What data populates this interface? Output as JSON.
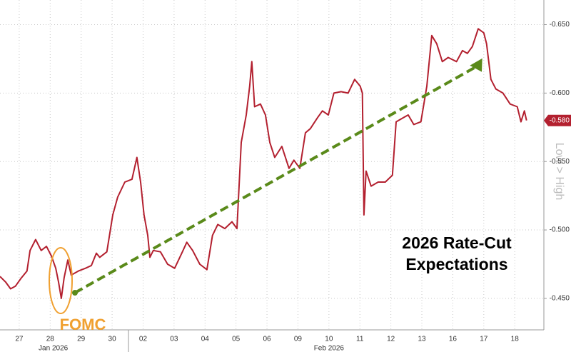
{
  "chart_data": {
    "type": "line",
    "annotations": {
      "fomc": "FOMC",
      "headline": [
        "2026 Rate-Cut",
        "Expectations"
      ],
      "axis_note": "Low > High"
    },
    "xlim": [
      -0.62,
      16.94
    ],
    "xticks": [
      {
        "value": 0,
        "label": "27"
      },
      {
        "value": 1,
        "label": "28"
      },
      {
        "value": 2,
        "label": "29"
      },
      {
        "value": 3,
        "label": "30"
      },
      {
        "value": 4,
        "label": "02"
      },
      {
        "value": 5,
        "label": "03"
      },
      {
        "value": 6,
        "label": "04"
      },
      {
        "value": 7,
        "label": "05"
      },
      {
        "value": 8,
        "label": "06"
      },
      {
        "value": 9,
        "label": "09"
      },
      {
        "value": 10,
        "label": "10"
      },
      {
        "value": 11,
        "label": "11"
      },
      {
        "value": 12,
        "label": "12"
      },
      {
        "value": 13,
        "label": "13"
      },
      {
        "value": 14,
        "label": "16"
      },
      {
        "value": 15,
        "label": "17"
      },
      {
        "value": 16,
        "label": "18"
      }
    ],
    "month_ticks": [
      {
        "value": 1.1,
        "label": "Jan 2026"
      },
      {
        "value": 10,
        "label": "Feb 2026"
      }
    ],
    "ylim": [
      -0.427,
      -0.668
    ],
    "yticks": [
      {
        "value": -0.45,
        "label": "-0.450"
      },
      {
        "value": -0.5,
        "label": "-0.500"
      },
      {
        "value": -0.55,
        "label": "-0.550"
      },
      {
        "value": -0.6,
        "label": "-0.600"
      },
      {
        "value": -0.65,
        "label": "-0.650"
      }
    ],
    "current_value": {
      "value": -0.58,
      "label": "-0.580"
    },
    "grid": true,
    "series": [
      {
        "color": "#b3202f",
        "x": [
          -0.62,
          -0.44,
          -0.28,
          -0.12,
          0.07,
          0.25,
          0.35,
          0.53,
          0.71,
          0.88,
          1.04,
          1.18,
          1.27,
          1.36,
          1.45,
          1.57,
          1.68,
          1.91,
          2.14,
          2.33,
          2.49,
          2.6,
          2.83,
          3.02,
          3.18,
          3.41,
          3.64,
          3.8,
          3.92,
          4.03,
          4.15,
          4.22,
          4.33,
          4.56,
          4.79,
          5.02,
          5.25,
          5.41,
          5.6,
          5.83,
          6.06,
          6.24,
          6.41,
          6.64,
          6.87,
          7.03,
          7.17,
          7.33,
          7.44,
          7.51,
          7.6,
          7.79,
          7.95,
          8.09,
          8.25,
          8.48,
          8.71,
          8.87,
          9.06,
          9.24,
          9.4,
          9.63,
          9.79,
          9.98,
          10.16,
          10.39,
          10.62,
          10.83,
          11.01,
          11.08,
          11.13,
          11.2,
          11.36,
          11.59,
          11.82,
          12.05,
          12.17,
          12.4,
          12.56,
          12.74,
          12.97,
          13.16,
          13.32,
          13.48,
          13.66,
          13.85,
          14.12,
          14.31,
          14.47,
          14.63,
          14.82,
          15.0,
          15.09,
          15.23,
          15.39,
          15.62,
          15.85,
          16.08,
          16.2,
          16.31,
          16.38
        ],
        "values": [
          -0.466,
          -0.462,
          -0.457,
          -0.459,
          -0.465,
          -0.47,
          -0.485,
          -0.493,
          -0.485,
          -0.488,
          -0.481,
          -0.472,
          -0.462,
          -0.45,
          -0.465,
          -0.478,
          -0.467,
          -0.47,
          -0.472,
          -0.474,
          -0.483,
          -0.48,
          -0.484,
          -0.511,
          -0.524,
          -0.535,
          -0.537,
          -0.553,
          -0.535,
          -0.511,
          -0.496,
          -0.48,
          -0.485,
          -0.484,
          -0.475,
          -0.472,
          -0.483,
          -0.491,
          -0.485,
          -0.475,
          -0.471,
          -0.496,
          -0.504,
          -0.501,
          -0.506,
          -0.501,
          -0.564,
          -0.584,
          -0.605,
          -0.623,
          -0.59,
          -0.592,
          -0.584,
          -0.564,
          -0.553,
          -0.561,
          -0.545,
          -0.551,
          -0.545,
          -0.571,
          -0.574,
          -0.582,
          -0.587,
          -0.584,
          -0.6,
          -0.601,
          -0.6,
          -0.61,
          -0.605,
          -0.6,
          -0.511,
          -0.543,
          -0.532,
          -0.535,
          -0.535,
          -0.54,
          -0.579,
          -0.582,
          -0.584,
          -0.577,
          -0.579,
          -0.605,
          -0.642,
          -0.636,
          -0.623,
          -0.626,
          -0.623,
          -0.631,
          -0.629,
          -0.634,
          -0.647,
          -0.644,
          -0.636,
          -0.61,
          -0.603,
          -0.6,
          -0.592,
          -0.59,
          -0.579,
          -0.587,
          -0.58
        ]
      }
    ]
  }
}
